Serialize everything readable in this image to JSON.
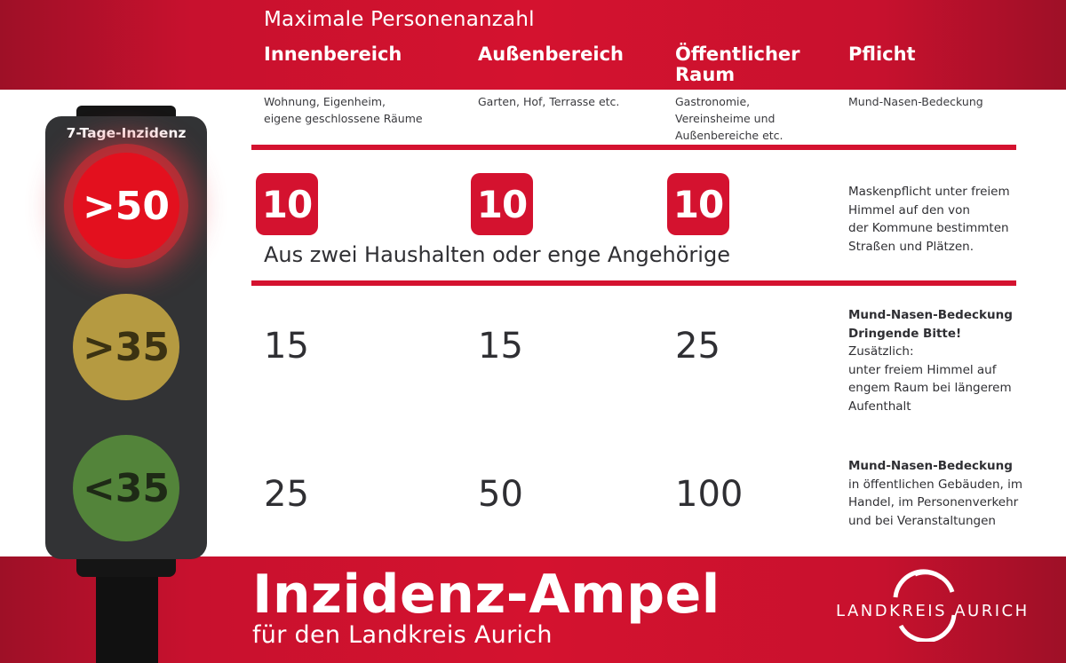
{
  "header": {
    "max_label": "Maximale Personenanzahl",
    "columns": [
      {
        "title": "Innenbereich",
        "subtitle_lines": [
          "Wohnung, Eigenheim,",
          "eigene geschlossene Räume"
        ]
      },
      {
        "title": "Außenbereich",
        "subtitle_lines": [
          "Garten, Hof, Terrasse etc."
        ]
      },
      {
        "title_lines": [
          "Öffentlicher",
          "Raum"
        ],
        "subtitle_lines": [
          "Gastronomie,",
          "Vereinsheime und",
          "Außenbereiche etc."
        ]
      },
      {
        "title": "Pflicht",
        "subtitle_lines": [
          "Mund-Nasen-Bedeckung"
        ]
      }
    ]
  },
  "traffic_light": {
    "label": "7-Tage-Inzidenz",
    "lamps": [
      {
        "label": ">50",
        "color": "#e3101e"
      },
      {
        "label": ">35",
        "color": "#b59a41"
      },
      {
        "label": "<35",
        "color": "#53843a"
      }
    ]
  },
  "rows": [
    {
      "values": [
        "10",
        "10",
        "10"
      ],
      "note": "Aus zwei Haushalten oder enge Angehörige",
      "rule_lines": [
        "Maskenpflicht unter freiem",
        "Himmel auf den von",
        "der Kommune bestimmten",
        "Straßen und Plätzen."
      ]
    },
    {
      "values": [
        "15",
        "15",
        "25"
      ],
      "rule_bold_1": "Mund-Nasen-Bedeckung",
      "rule_bold_2": "Dringende Bitte!",
      "rule_rest_2": " Zusätzlich:",
      "rule_lines": [
        "unter freiem Himmel auf",
        "engem Raum bei längerem",
        "Aufenthalt"
      ]
    },
    {
      "values": [
        "25",
        "50",
        "100"
      ],
      "rule_bold_1": "Mund-Nasen-Bedeckung",
      "rule_lines": [
        "in öffentlichen Gebäuden, im",
        "Handel, im Personenverkehr",
        "und bei Veranstaltungen"
      ]
    }
  ],
  "footer": {
    "title": "Inzidenz-Ampel",
    "subtitle": "für den Landkreis Aurich",
    "logo_text": "LANDKREIS AURICH"
  },
  "colors": {
    "brand_red": "#d4122f",
    "text_dark": "#2f2f33"
  }
}
